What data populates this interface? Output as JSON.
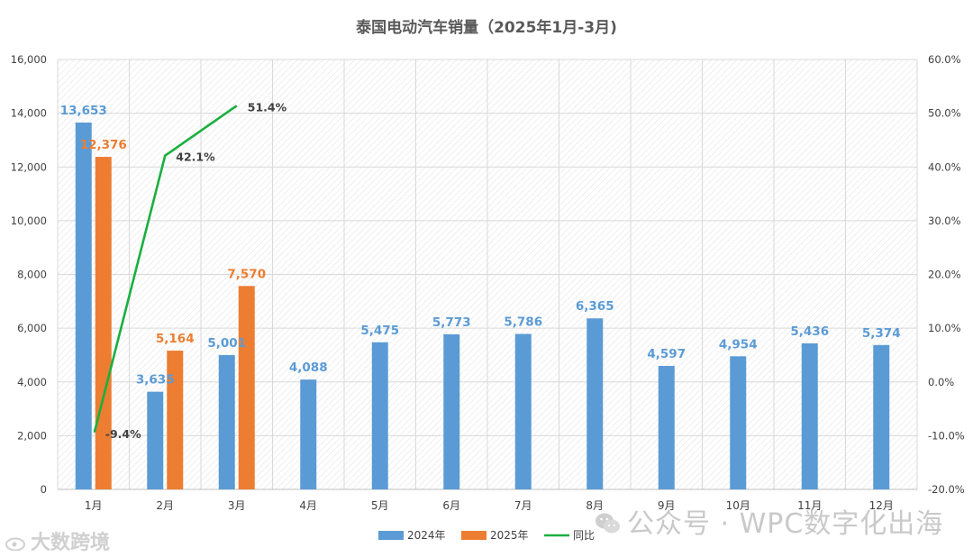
{
  "chart_data": {
    "type": "bar",
    "title": "泰国电动汽车销量（2025年1月-3月)",
    "categories": [
      "1月",
      "2月",
      "3月",
      "4月",
      "5月",
      "6月",
      "7月",
      "8月",
      "9月",
      "10月",
      "11月",
      "12月"
    ],
    "series": [
      {
        "name": "2024年",
        "type": "bar",
        "color": "#5b9bd5",
        "values": [
          13653,
          3635,
          5001,
          4088,
          5475,
          5773,
          5786,
          6365,
          4597,
          4954,
          5436,
          5374
        ],
        "labels": [
          "13,653",
          "3,635",
          "5,001",
          "4,088",
          "5,475",
          "5,773",
          "5,786",
          "6,365",
          "4,597",
          "4,954",
          "5,436",
          "5,374"
        ]
      },
      {
        "name": "2025年",
        "type": "bar",
        "color": "#ed7d31",
        "values": [
          12376,
          5164,
          7570,
          null,
          null,
          null,
          null,
          null,
          null,
          null,
          null,
          null
        ],
        "labels": [
          "12,376",
          "5,164",
          "7,570"
        ]
      },
      {
        "name": "同比",
        "type": "line",
        "axis": "right",
        "color": "#1aaf3f",
        "values": [
          -9.4,
          42.1,
          51.4,
          null,
          null,
          null,
          null,
          null,
          null,
          null,
          null,
          null
        ],
        "labels": [
          "-9.4%",
          "42.1%",
          "51.4%"
        ]
      }
    ],
    "ylim": [
      0,
      16000
    ],
    "yticks": [
      "0",
      "2,000",
      "4,000",
      "6,000",
      "8,000",
      "10,000",
      "12,000",
      "14,000",
      "16,000"
    ],
    "y2lim": [
      -20,
      60
    ],
    "y2ticks": [
      "-20.0%",
      "-10.0%",
      "0.0%",
      "10.0%",
      "20.0%",
      "30.0%",
      "40.0%",
      "50.0%",
      "60.0%"
    ],
    "grid": true,
    "legend_position": "bottom"
  },
  "watermarks": {
    "right": "公众号 · WPC数字化出海",
    "left": "大数跨境",
    "right_icon": "wechat-icon",
    "left_icon": "weibo-icon"
  }
}
